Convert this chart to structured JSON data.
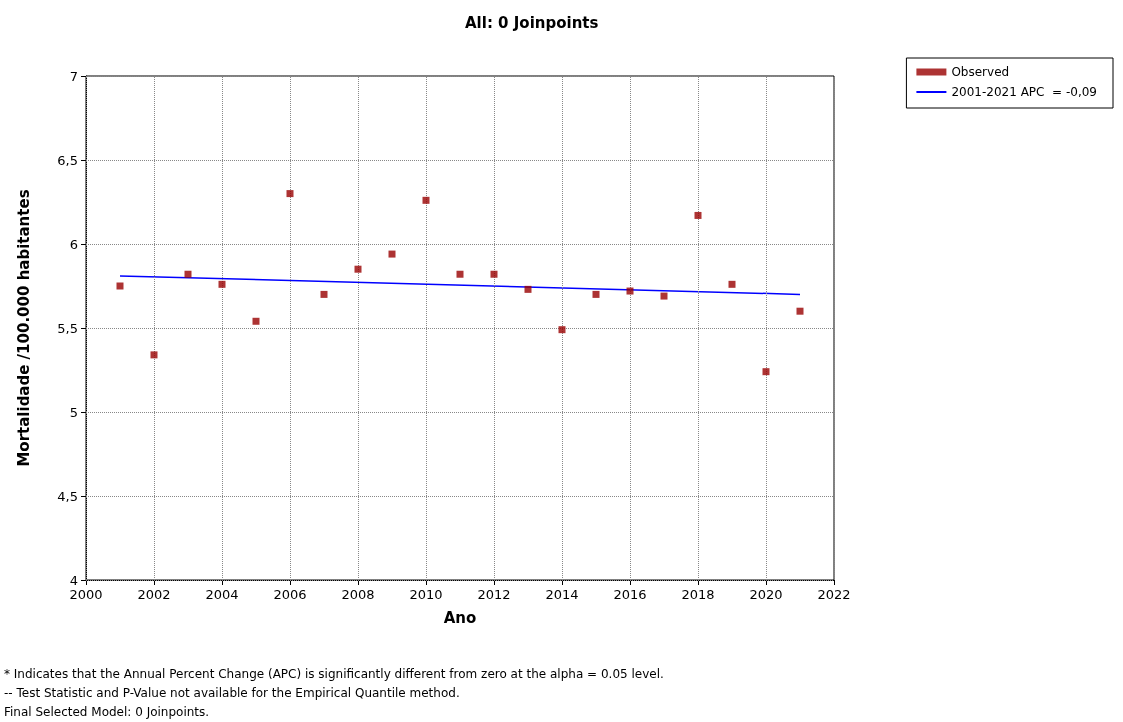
{
  "chart_data": {
    "type": "scatter",
    "title": "All: 0 Joinpoints",
    "xlabel": "Ano",
    "ylabel": "Mortalidade /100.000 habitantes",
    "xlim": [
      2000,
      2022
    ],
    "xticks": [
      2000,
      2002,
      2004,
      2006,
      2008,
      2010,
      2012,
      2014,
      2016,
      2018,
      2020,
      2022
    ],
    "ylim": [
      4,
      7
    ],
    "yticks": [
      4,
      {
        "value": 4.5,
        "label": "4,5"
      },
      5,
      {
        "value": 5.5,
        "label": "5,5"
      },
      6,
      {
        "value": 6.5,
        "label": "6,5"
      },
      7
    ],
    "grid": true,
    "legend": "top right",
    "series": [
      {
        "name": "Observed",
        "marker": "square",
        "color": "#990000",
        "x": [
          2001,
          2002,
          2003,
          2004,
          2005,
          2006,
          2007,
          2008,
          2009,
          2010,
          2011,
          2012,
          2013,
          2014,
          2015,
          2016,
          2017,
          2018,
          2019,
          2020,
          2021
        ],
        "values": [
          5.75,
          5.34,
          5.82,
          5.76,
          5.54,
          6.3,
          5.7,
          5.85,
          5.94,
          6.26,
          5.82,
          5.82,
          5.73,
          5.49,
          5.7,
          5.72,
          5.69,
          6.17,
          5.76,
          5.24,
          5.6
        ]
      },
      {
        "name": "2001-2021 APC  = -0,09",
        "type": "line",
        "marker": "none",
        "line_style": "solid",
        "color": "#0000ff",
        "x": [
          2001,
          2021
        ],
        "values": [
          5.81,
          5.7
        ]
      }
    ],
    "annotations": [
      "* Indicates that the Annual Percent Change (APC) is significantly different from zero at the alpha = 0.05 level.",
      "-- Test Statistic and P-Value not available for the Empirical Quantile method.",
      "Final Selected Model: 0 Joinpoints."
    ]
  }
}
